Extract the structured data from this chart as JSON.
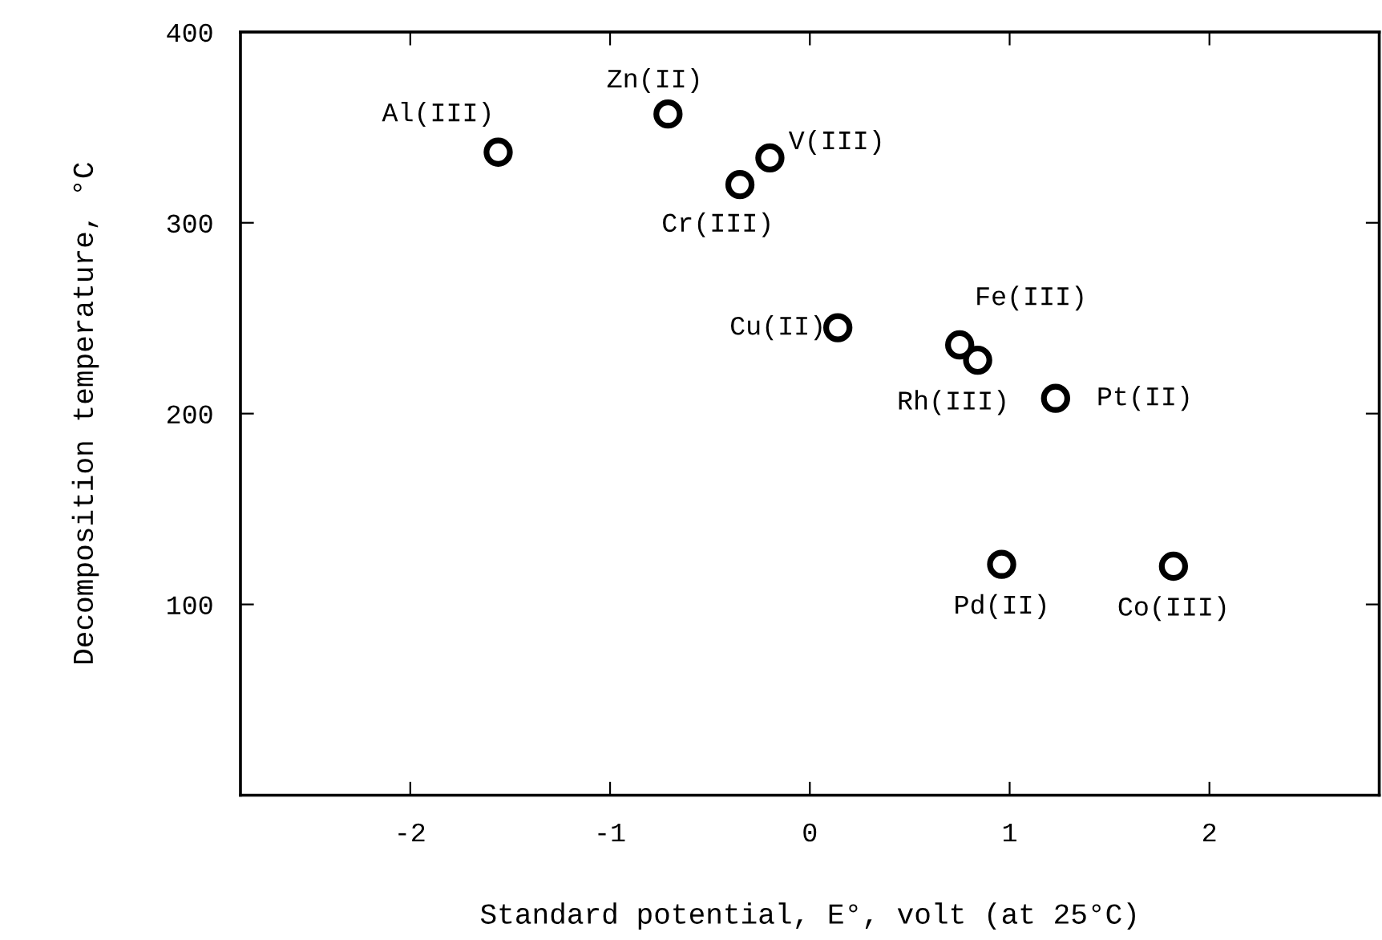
{
  "chart_data": {
    "type": "scatter",
    "xlabel": "Standard potential, E°, volt (at 25°C)",
    "ylabel": "Decomposition temperature, °C",
    "x": [
      -1.56,
      -0.71,
      -0.2,
      -0.35,
      0.14,
      0.75,
      0.84,
      1.23,
      0.96,
      1.82
    ],
    "series": [
      {
        "color": "#000000",
        "values": [
          337,
          357,
          334,
          320,
          245,
          236,
          228,
          208,
          121,
          120
        ]
      }
    ],
    "annotations": [
      {
        "text": "Al(III)",
        "x": -1.56,
        "y": 337
      },
      {
        "text": "Zn(II)",
        "x": -0.71,
        "y": 357
      },
      {
        "text": "V(III)",
        "x": -0.2,
        "y": 334
      },
      {
        "text": "Cr(III)",
        "x": -0.35,
        "y": 320
      },
      {
        "text": "Cu(II)",
        "x": 0.14,
        "y": 245
      },
      {
        "text": "Fe(III)",
        "x": 0.75,
        "y": 236
      },
      {
        "text": "Rh(III)",
        "x": 0.84,
        "y": 228
      },
      {
        "text": "Pt(II)",
        "x": 1.23,
        "y": 208
      },
      {
        "text": "Pd(II)",
        "x": 0.96,
        "y": 121
      },
      {
        "text": "Co(III)",
        "x": 1.82,
        "y": 120
      }
    ],
    "xlim": [
      -2.85,
      2.85
    ],
    "ylim": [
      0,
      400
    ],
    "xticks": [
      {
        "value": -2,
        "label": "-2"
      },
      {
        "value": -1,
        "label": "-1"
      },
      0,
      1,
      2
    ],
    "yticks": [
      100,
      200,
      300,
      400
    ],
    "marker": "circle",
    "grid": false,
    "legend": false
  }
}
